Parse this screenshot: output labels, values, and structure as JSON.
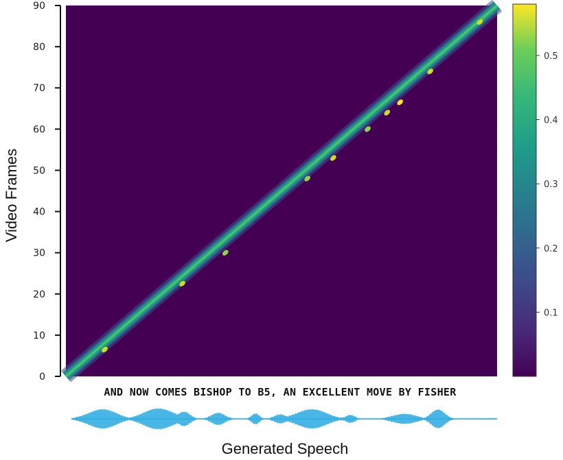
{
  "chart_data": {
    "type": "heatmap",
    "title": "",
    "xlabel": "Generated Speech",
    "ylabel": "Video Frames",
    "ylim": [
      0,
      90
    ],
    "y_ticks": [
      0,
      10,
      20,
      30,
      40,
      50,
      60,
      70,
      80,
      90
    ],
    "colorbar": {
      "colormap": "viridis",
      "range": [
        0,
        0.58
      ],
      "ticks": [
        0.1,
        0.2,
        0.3,
        0.4,
        0.5
      ],
      "tick_labels": [
        "0.1",
        "0.2",
        "0.3",
        "0.4",
        "0.5"
      ]
    },
    "alignment": {
      "description_points": [
        [
          0,
          0
        ],
        [
          1,
          90
        ]
      ],
      "peak_points": [
        {
          "x_frac": 0.09,
          "y": 6.5,
          "value": 0.52
        },
        {
          "x_frac": 0.27,
          "y": 22.5,
          "value": 0.5
        },
        {
          "x_frac": 0.37,
          "y": 30,
          "value": 0.42
        },
        {
          "x_frac": 0.56,
          "y": 48,
          "value": 0.45
        },
        {
          "x_frac": 0.62,
          "y": 53,
          "value": 0.48
        },
        {
          "x_frac": 0.7,
          "y": 60,
          "value": 0.42
        },
        {
          "x_frac": 0.745,
          "y": 64,
          "value": 0.5
        },
        {
          "x_frac": 0.775,
          "y": 66.5,
          "value": 0.56
        },
        {
          "x_frac": 0.845,
          "y": 74,
          "value": 0.48
        },
        {
          "x_frac": 0.96,
          "y": 86,
          "value": 0.5
        }
      ]
    },
    "background_color": "#440154",
    "transcript": "AND NOW COMES BISHOP TO B5, AN EXCELLENT MOVE BY FISHER",
    "waveform_color": "#29aae2"
  }
}
